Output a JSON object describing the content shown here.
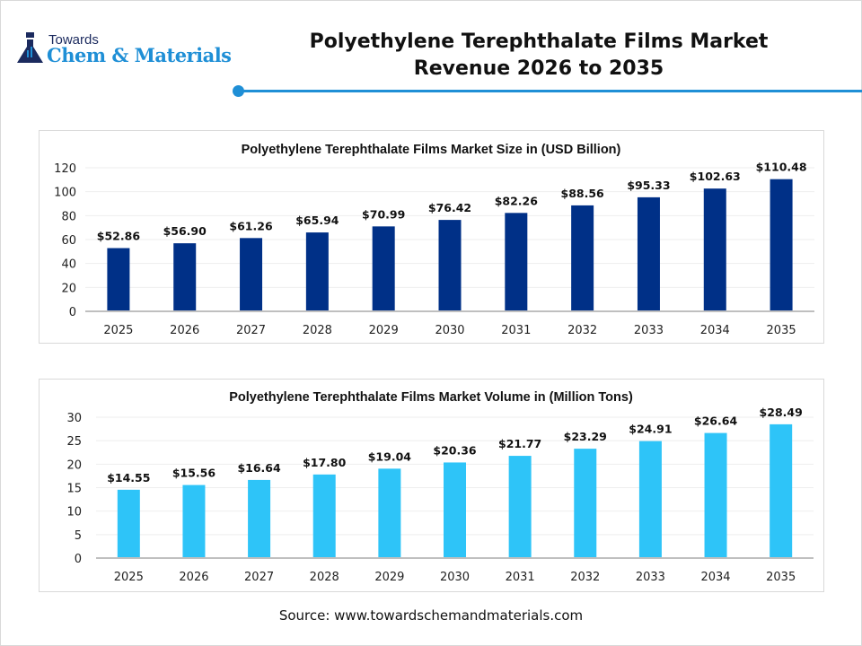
{
  "brand": {
    "line1": "Towards",
    "line2": "Chem & Materials"
  },
  "header": {
    "title_line1": "Polyethylene Terephthalate Films Market",
    "title_line2": "Revenue 2026 to 2035",
    "accent": "#1f8fd6"
  },
  "chart_data": [
    {
      "type": "bar",
      "title": "Polyethylene Terephthalate Films Market Size in (USD Billion)",
      "categories": [
        "2025",
        "2026",
        "2027",
        "2028",
        "2029",
        "2030",
        "2031",
        "2032",
        "2033",
        "2034",
        "2035"
      ],
      "values": [
        52.86,
        56.9,
        61.26,
        65.94,
        70.99,
        76.42,
        82.26,
        88.56,
        95.33,
        102.63,
        110.48
      ],
      "labels": [
        "$52.86",
        "$56.90",
        "$61.26",
        "$65.94",
        "$70.99",
        "$76.42",
        "$82.26",
        "$88.56",
        "$95.33",
        "$102.63",
        "$110.48"
      ],
      "ylim": [
        0,
        120
      ],
      "yticks": [
        "0",
        "20",
        "40",
        "60",
        "80",
        "100",
        "120"
      ],
      "color": "#003087",
      "grid": true
    },
    {
      "type": "bar",
      "title": "Polyethylene Terephthalate Films Market Volume in (Million Tons)",
      "categories": [
        "2025",
        "2026",
        "2027",
        "2028",
        "2029",
        "2030",
        "2031",
        "2032",
        "2033",
        "2034",
        "2035"
      ],
      "values": [
        14.55,
        15.56,
        16.64,
        17.8,
        19.04,
        20.36,
        21.77,
        23.29,
        24.91,
        26.64,
        28.49
      ],
      "labels": [
        "$14.55",
        "$15.56",
        "$16.64",
        "$17.80",
        "$19.04",
        "$20.36",
        "$21.77",
        "$23.29",
        "$24.91",
        "$26.64",
        "$28.49"
      ],
      "ylim": [
        0,
        30
      ],
      "yticks": [
        "0",
        "5",
        "10",
        "15",
        "20",
        "25",
        "30"
      ],
      "color": "#2ec4f8",
      "grid": true
    }
  ],
  "source": "Source: www.towardschemandmaterials.com"
}
